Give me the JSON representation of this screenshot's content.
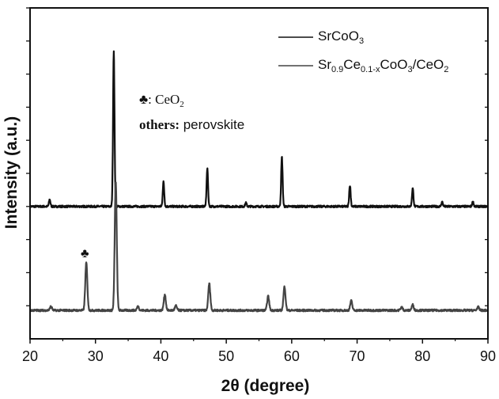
{
  "chart_data": {
    "type": "line",
    "title": "",
    "xlabel": "2θ (degree)",
    "ylabel": "Intensity (a.u.)",
    "xlim": [
      20,
      90
    ],
    "ylim": [
      0,
      100
    ],
    "xticks": [
      "20",
      "30",
      "40",
      "50",
      "60",
      "70",
      "80",
      "90"
    ],
    "yticks_labeled": false,
    "grid": false,
    "legend": {
      "placement": "top-right",
      "entries": [
        {
          "parts": [
            "SrCoO",
            "3"
          ]
        },
        {
          "parts": [
            "Sr",
            "0.9",
            "Ce",
            "0.1-x",
            "CoO",
            "3",
            "/CeO",
            "2"
          ]
        }
      ]
    },
    "annotations": {
      "ceo2_symbol": "♣",
      "ceo2_label": [
        ": CeO",
        "2"
      ],
      "others_bold": "others:",
      "others_text": " perovskite"
    },
    "series": [
      {
        "legend_index": 0,
        "color": "#111111",
        "baseline": 40.0,
        "peaks": [
          {
            "x": 23.0,
            "y": 42.1
          },
          {
            "x": 32.8,
            "y": 86.8
          },
          {
            "x": 40.4,
            "y": 47.4
          },
          {
            "x": 47.1,
            "y": 51.4
          },
          {
            "x": 53.0,
            "y": 41.1
          },
          {
            "x": 58.5,
            "y": 55.0
          },
          {
            "x": 68.9,
            "y": 46.4
          },
          {
            "x": 78.5,
            "y": 45.5
          },
          {
            "x": 83.0,
            "y": 41.4
          },
          {
            "x": 87.7,
            "y": 41.4
          }
        ]
      },
      {
        "legend_index": 1,
        "color": "#444444",
        "baseline": 8.6,
        "peaks": [
          {
            "x": 23.2,
            "y": 9.8
          },
          {
            "x": 28.6,
            "y": 23.0
          },
          {
            "x": 33.1,
            "y": 47.4
          },
          {
            "x": 36.5,
            "y": 9.8
          },
          {
            "x": 40.6,
            "y": 13.4
          },
          {
            "x": 42.3,
            "y": 10.0
          },
          {
            "x": 47.4,
            "y": 16.7
          },
          {
            "x": 56.4,
            "y": 12.9
          },
          {
            "x": 58.9,
            "y": 15.8
          },
          {
            "x": 69.1,
            "y": 11.5
          },
          {
            "x": 76.8,
            "y": 9.6
          },
          {
            "x": 78.5,
            "y": 10.3
          },
          {
            "x": 88.5,
            "y": 9.6
          }
        ]
      }
    ]
  }
}
